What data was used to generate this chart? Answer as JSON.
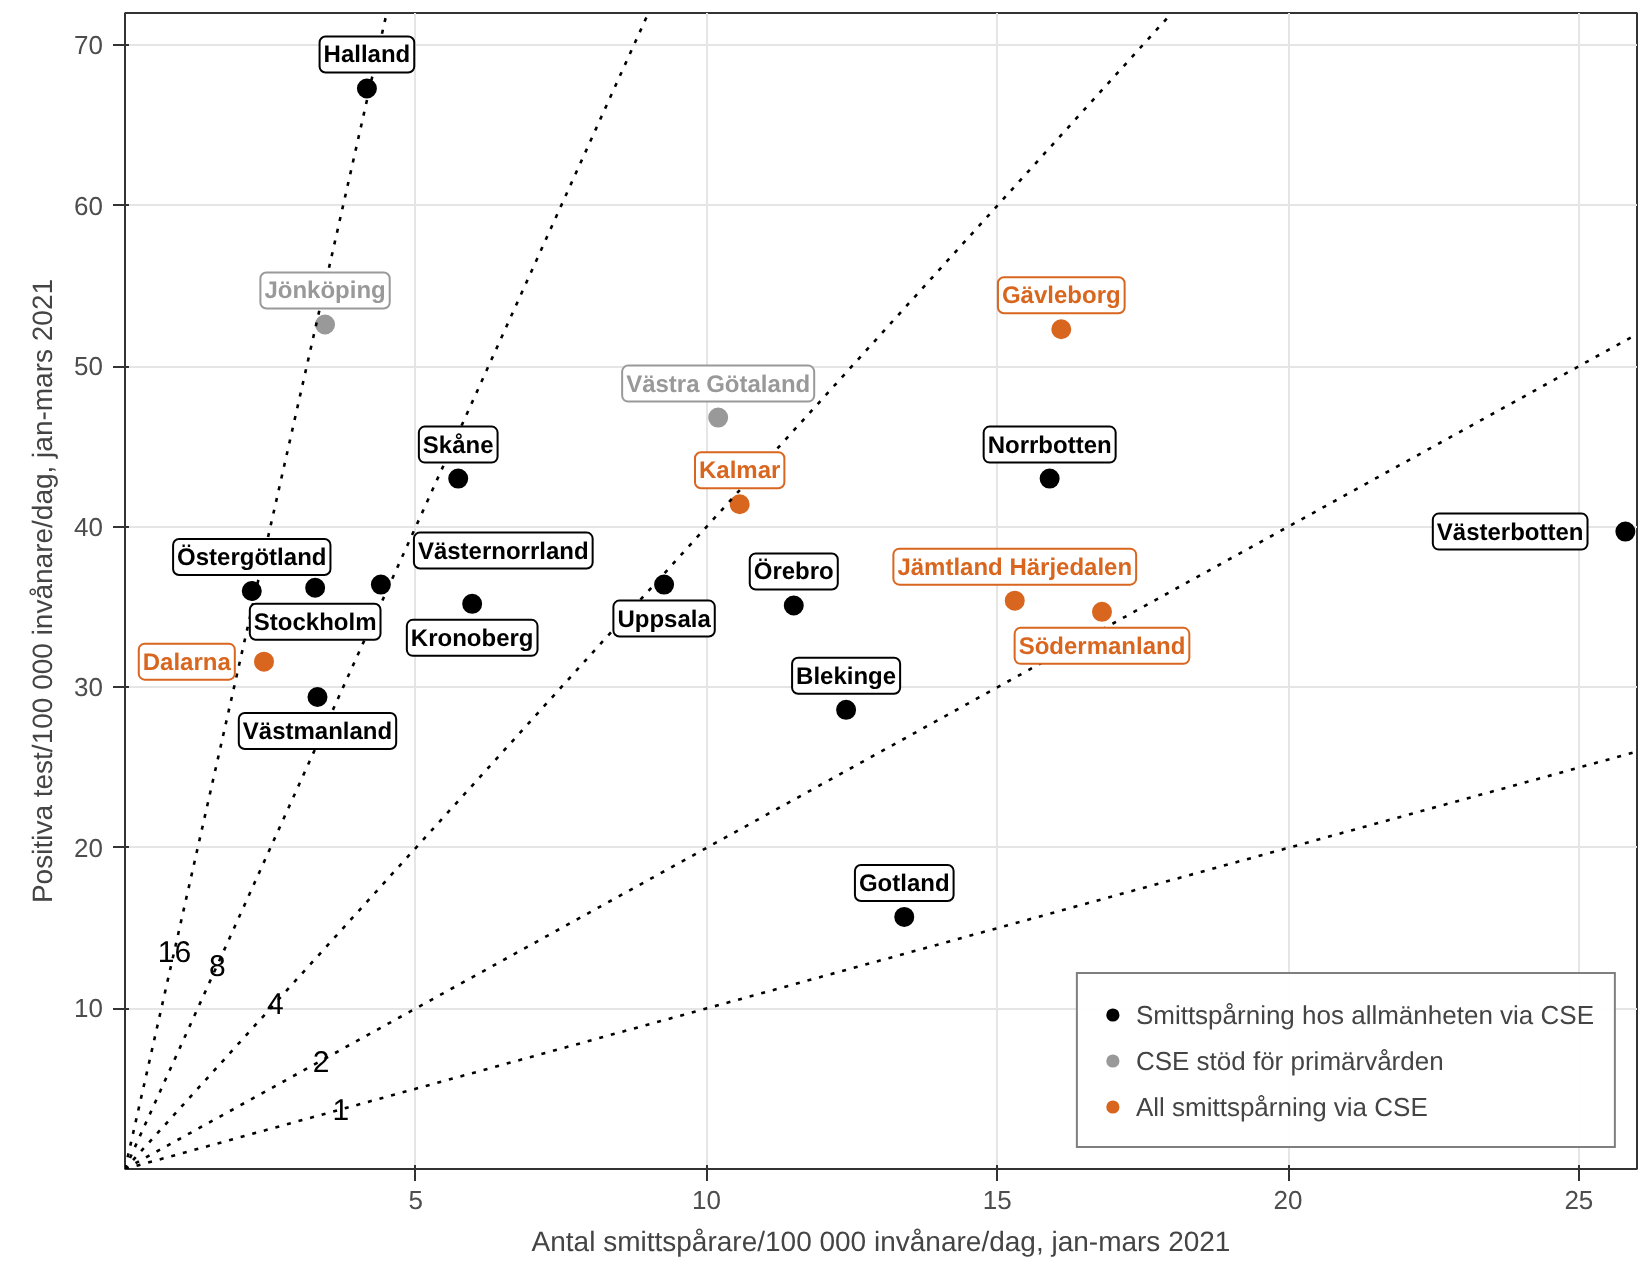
{
  "chart_data": {
    "type": "scatter",
    "xlabel": "Antal smittspårare/100 000 invånare/dag, jan-mars 2021",
    "ylabel": "Positiva test/100 000 invånare/dag, jan-mars 2021",
    "xlim": [
      0,
      26
    ],
    "ylim": [
      0,
      72
    ],
    "xticks": [
      5,
      10,
      15,
      20,
      25
    ],
    "yticks": [
      10,
      20,
      30,
      40,
      50,
      60,
      70
    ],
    "grid": true,
    "legend": "bottom right",
    "marker": "circle",
    "series": [
      {
        "name": "Smittspårning hos allmänheten via CSE",
        "color": "#000000",
        "x": [
          4.16,
          5.73,
          15.9,
          25.8,
          2.18,
          3.27,
          4.4,
          5.97,
          9.27,
          11.5,
          3.31,
          12.4,
          13.4
        ],
        "values": [
          67.3,
          43.0,
          43.0,
          39.7,
          36.0,
          36.2,
          36.4,
          35.2,
          36.4,
          35.1,
          29.4,
          28.6,
          15.7
        ]
      },
      {
        "name": "CSE stöd för primärvården",
        "color": "#999999",
        "x": [
          3.44,
          10.2
        ],
        "values": [
          52.6,
          46.8
        ]
      },
      {
        "name": "All smittspårning via CSE",
        "color": "#d9661f",
        "x": [
          16.1,
          10.57,
          15.3,
          16.8,
          2.39
        ],
        "values": [
          52.3,
          41.4,
          35.4,
          34.7,
          31.6
        ]
      },
      {
        "name": "16",
        "type": "line",
        "color": "#000000",
        "line_style": "dotted",
        "marker": "none",
        "x": [
          0,
          4.5
        ],
        "values": [
          0,
          72
        ]
      },
      {
        "name": "8",
        "type": "line",
        "color": "#000000",
        "line_style": "dotted",
        "marker": "none",
        "x": [
          0,
          9
        ],
        "values": [
          0,
          72
        ]
      },
      {
        "name": "4",
        "type": "line",
        "color": "#000000",
        "line_style": "dotted",
        "marker": "none",
        "x": [
          0,
          18
        ],
        "values": [
          0,
          72
        ]
      },
      {
        "name": "2",
        "type": "line",
        "color": "#000000",
        "line_style": "dotted",
        "marker": "none",
        "x": [
          0,
          26
        ],
        "values": [
          0,
          52
        ]
      },
      {
        "name": "1",
        "type": "line",
        "color": "#000000",
        "line_style": "dotted",
        "marker": "none",
        "x": [
          0,
          26
        ],
        "values": [
          0,
          26
        ]
      }
    ],
    "annotations": [
      {
        "text": "Halland",
        "x": 4.16,
        "y": 67.3
      },
      {
        "text": "Jönköping",
        "x": 3.44,
        "y": 52.6
      },
      {
        "text": "Västra Götaland",
        "x": 10.2,
        "y": 46.8
      },
      {
        "text": "Gävleborg",
        "x": 16.1,
        "y": 52.3
      },
      {
        "text": "Skåne",
        "x": 5.73,
        "y": 43.0
      },
      {
        "text": "Kalmar",
        "x": 10.57,
        "y": 41.4
      },
      {
        "text": "Norrbotten",
        "x": 15.9,
        "y": 43.0
      },
      {
        "text": "Västerbotten",
        "x": 25.8,
        "y": 39.7
      },
      {
        "text": "Östergötland",
        "x": 2.18,
        "y": 36.0
      },
      {
        "text": "Stockholm",
        "x": 3.27,
        "y": 36.2
      },
      {
        "text": "Västernorrland",
        "x": 4.4,
        "y": 36.4
      },
      {
        "text": "Kronoberg",
        "x": 5.97,
        "y": 35.2
      },
      {
        "text": "Uppsala",
        "x": 9.27,
        "y": 36.4
      },
      {
        "text": "Örebro",
        "x": 11.5,
        "y": 35.1
      },
      {
        "text": "Jämtland Härjedalen",
        "x": 15.3,
        "y": 35.4
      },
      {
        "text": "Södermanland",
        "x": 16.8,
        "y": 34.7
      },
      {
        "text": "Dalarna",
        "x": 2.39,
        "y": 31.6
      },
      {
        "text": "Västmanland",
        "x": 3.31,
        "y": 29.4
      },
      {
        "text": "Blekinge",
        "x": 12.4,
        "y": 28.6
      },
      {
        "text": "Gotland",
        "x": 13.4,
        "y": 15.7
      }
    ]
  }
}
